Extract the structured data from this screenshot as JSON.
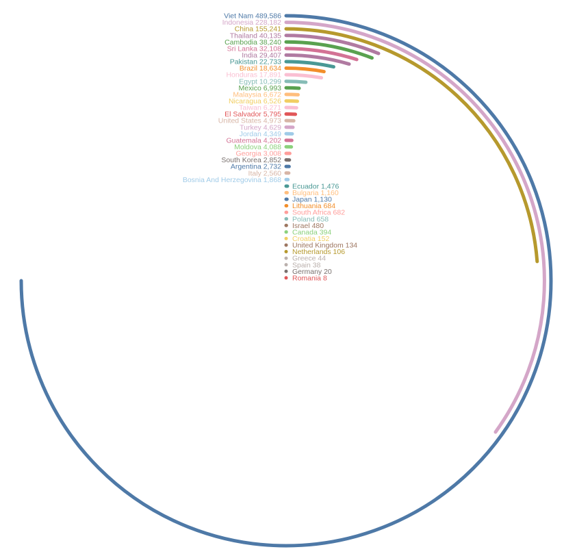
{
  "chart_data": {
    "type": "radial-bar",
    "max_value": 489586,
    "series": [
      {
        "name": "Viet Nam",
        "value": 489586,
        "label": "Viet Nam 489,586",
        "color": "#4e79a7"
      },
      {
        "name": "Indonesia",
        "value": 228182,
        "label": "Indonesia 228,182",
        "color": "#d4a6c8"
      },
      {
        "name": "China",
        "value": 155241,
        "label": "China 155,241",
        "color": "#b6992d"
      },
      {
        "name": "Thailand",
        "value": 40135,
        "label": "Thailand 40,135",
        "color": "#b07aa1"
      },
      {
        "name": "Cambodia",
        "value": 38240,
        "label": "Cambodia 38,240",
        "color": "#59a14f"
      },
      {
        "name": "Sri Lanka",
        "value": 32108,
        "label": "Sri Lanka 32,108",
        "color": "#d37295"
      },
      {
        "name": "India",
        "value": 29407,
        "label": "India 29,407",
        "color": "#b07aa1"
      },
      {
        "name": "Pakistan",
        "value": 22733,
        "label": "Pakistan 22,733",
        "color": "#499894"
      },
      {
        "name": "Brazil",
        "value": 18634,
        "label": "Brazil 18,634",
        "color": "#f28e2b"
      },
      {
        "name": "Honduras",
        "value": 17891,
        "label": "Honduras 17,891",
        "color": "#fabfd2"
      },
      {
        "name": "Egypt",
        "value": 10299,
        "label": "Egypt 10,299",
        "color": "#86bcb6"
      },
      {
        "name": "Mexico",
        "value": 6993,
        "label": "Mexico 6,993",
        "color": "#59a14f"
      },
      {
        "name": "Malaysia",
        "value": 6672,
        "label": "Malaysia 6,672",
        "color": "#ffbe7d"
      },
      {
        "name": "Nicaragua",
        "value": 6526,
        "label": "Nicaragua 6,526",
        "color": "#f1ce63"
      },
      {
        "name": "Taiwan",
        "value": 6271,
        "label": "Taiwan 6,271",
        "color": "#fabfd2"
      },
      {
        "name": "El Salvador",
        "value": 5795,
        "label": "El Salvador 5,795",
        "color": "#e15759"
      },
      {
        "name": "United States",
        "value": 4973,
        "label": "United States 4,973",
        "color": "#d7b5a6"
      },
      {
        "name": "Turkey",
        "value": 4629,
        "label": "Turkey 4,629",
        "color": "#d4a6c8"
      },
      {
        "name": "Jordan",
        "value": 4349,
        "label": "Jordan 4,349",
        "color": "#a0cbe8"
      },
      {
        "name": "Guatemala",
        "value": 4202,
        "label": "Guatemala 4,202",
        "color": "#d37295"
      },
      {
        "name": "Moldova",
        "value": 4088,
        "label": "Moldova 4,088",
        "color": "#8cd17d"
      },
      {
        "name": "Georgia",
        "value": 3008,
        "label": "Georgia 3,008",
        "color": "#ff9d9a"
      },
      {
        "name": "South Korea",
        "value": 2852,
        "label": "South Korea 2,852",
        "color": "#79706e"
      },
      {
        "name": "Argentina",
        "value": 2732,
        "label": "Argentina 2,732",
        "color": "#4e79a7"
      },
      {
        "name": "Italy",
        "value": 2560,
        "label": "Italy 2,560",
        "color": "#d7b5a6"
      },
      {
        "name": "Bosnia And Herzegovina",
        "value": 1868,
        "label": "Bosnia And Herzegovina 1,868",
        "color": "#a0cbe8"
      },
      {
        "name": "Ecuador",
        "value": 1476,
        "label": "Ecuador 1,476",
        "color": "#499894"
      },
      {
        "name": "Bulgaria",
        "value": 1160,
        "label": "Bulgaria 1,160",
        "color": "#ffbe7d"
      },
      {
        "name": "Japan",
        "value": 1130,
        "label": "Japan 1,130",
        "color": "#4e79a7"
      },
      {
        "name": "Lithuania",
        "value": 684,
        "label": "Lithuania 684",
        "color": "#f28e2b"
      },
      {
        "name": "South Africa",
        "value": 682,
        "label": "South Africa 682",
        "color": "#ff9d9a"
      },
      {
        "name": "Poland",
        "value": 658,
        "label": "Poland 658",
        "color": "#86bcb6"
      },
      {
        "name": "Israel",
        "value": 480,
        "label": "Israel 480",
        "color": "#9d7660"
      },
      {
        "name": "Canada",
        "value": 394,
        "label": "Canada 394",
        "color": "#8cd17d"
      },
      {
        "name": "Croatia",
        "value": 152,
        "label": "Croatia 152",
        "color": "#f1ce63"
      },
      {
        "name": "United Kingdom",
        "value": 134,
        "label": "United Kingdom 134",
        "color": "#9d7660"
      },
      {
        "name": "Netherlands",
        "value": 106,
        "label": "Netherlands 106",
        "color": "#b6992d"
      },
      {
        "name": "Greece",
        "value": 44,
        "label": "Greece 44",
        "color": "#bab0ac"
      },
      {
        "name": "Spain",
        "value": 38,
        "label": "Spain 38",
        "color": "#bab0ac"
      },
      {
        "name": "Germany",
        "value": 20,
        "label": "Germany 20",
        "color": "#79706e"
      },
      {
        "name": "Romania",
        "value": 8,
        "label": "Romania 8",
        "color": "#e15759"
      }
    ]
  }
}
